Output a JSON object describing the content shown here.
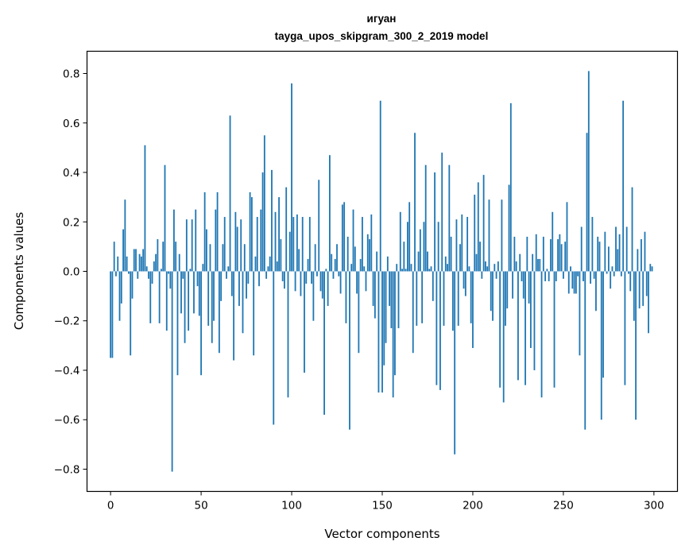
{
  "chart_data": {
    "type": "bar",
    "title": "игуан",
    "subtitle": "tayga_upos_skipgram_300_2_2019 model",
    "xlabel": "Vector components",
    "ylabel": "Components values",
    "xlim": [
      -13,
      313
    ],
    "ylim": [
      -0.89,
      0.89
    ],
    "xticks": [
      0,
      50,
      100,
      150,
      200,
      250,
      300
    ],
    "xtick_labels": [
      "0",
      "50",
      "100",
      "150",
      "200",
      "250",
      "300"
    ],
    "yticks": [
      0.8,
      0.6,
      0.4,
      0.2,
      0.0,
      -0.2,
      -0.4,
      -0.6,
      -0.8
    ],
    "ytick_labels": [
      "0.8",
      "0.6",
      "0.4",
      "0.2",
      "0.0",
      "−0.2",
      "−0.4",
      "−0.6",
      "−0.8"
    ],
    "bar_color": "#1f77b4",
    "grid": false,
    "values": [
      -0.35,
      -0.35,
      0.12,
      -0.02,
      0.06,
      -0.2,
      -0.13,
      0.17,
      0.29,
      0.06,
      -0.01,
      -0.34,
      -0.11,
      0.09,
      0.09,
      -0.03,
      0.07,
      0.06,
      0.09,
      0.51,
      0.02,
      -0.03,
      -0.21,
      -0.05,
      0.04,
      0.07,
      0.13,
      -0.21,
      0.01,
      0.12,
      0.43,
      -0.24,
      -0.01,
      -0.07,
      -0.81,
      0.25,
      0.12,
      -0.42,
      0.07,
      -0.17,
      -0.03,
      -0.29,
      0.21,
      -0.24,
      0.01,
      0.21,
      -0.17,
      0.25,
      -0.06,
      -0.18,
      -0.42,
      0.03,
      0.32,
      0.17,
      -0.22,
      0.11,
      -0.29,
      -0.2,
      0.25,
      0.32,
      -0.33,
      -0.12,
      0.11,
      0.22,
      -0.03,
      0.02,
      0.63,
      -0.1,
      -0.36,
      0.24,
      0.18,
      -0.14,
      0.21,
      -0.25,
      0.11,
      -0.11,
      -0.05,
      0.32,
      0.3,
      -0.34,
      0.06,
      0.22,
      -0.06,
      0.25,
      0.4,
      0.55,
      -0.03,
      0.02,
      0.06,
      0.41,
      -0.62,
      0.24,
      0.04,
      0.3,
      0.13,
      -0.04,
      -0.07,
      0.34,
      -0.51,
      0.16,
      0.76,
      0.22,
      -0.08,
      0.23,
      0.09,
      -0.1,
      0.22,
      -0.41,
      -0.05,
      0.05,
      0.22,
      -0.05,
      -0.2,
      0.11,
      -0.02,
      0.37,
      -0.08,
      -0.11,
      -0.58,
      0.01,
      -0.14,
      0.47,
      0.07,
      -0.03,
      0.05,
      0.11,
      -0.02,
      -0.09,
      0.27,
      0.28,
      -0.21,
      0.14,
      -0.64,
      0.03,
      0.25,
      0.1,
      -0.09,
      -0.33,
      0.05,
      0.22,
      0.02,
      -0.08,
      0.15,
      0.13,
      0.23,
      -0.14,
      -0.19,
      0.08,
      -0.49,
      0.69,
      -0.49,
      -0.38,
      -0.29,
      0.06,
      -0.14,
      -0.23,
      -0.51,
      -0.42,
      0.03,
      -0.23,
      0.24,
      0.01,
      0.12,
      0.01,
      0.2,
      0.28,
      0.03,
      -0.33,
      0.56,
      -0.22,
      0.08,
      0.17,
      -0.21,
      0.2,
      0.43,
      0.08,
      0.01,
      0.02,
      -0.12,
      0.4,
      -0.46,
      0.2,
      -0.48,
      0.48,
      -0.22,
      0.06,
      0.03,
      0.43,
      0.14,
      -0.24,
      -0.74,
      0.21,
      -0.22,
      0.11,
      0.23,
      -0.07,
      -0.1,
      0.22,
      0.02,
      -0.21,
      -0.31,
      0.31,
      0.07,
      0.36,
      0.12,
      -0.03,
      0.39,
      0.04,
      0.02,
      0.29,
      -0.16,
      -0.2,
      0.03,
      -0.03,
      0.04,
      -0.47,
      0.29,
      -0.53,
      -0.22,
      -0.15,
      0.35,
      0.68,
      -0.11,
      0.14,
      0.04,
      -0.44,
      0.07,
      -0.04,
      -0.11,
      -0.46,
      0.14,
      -0.13,
      -0.31,
      0.07,
      -0.4,
      0.15,
      0.05,
      0.05,
      -0.51,
      0.14,
      -0.04,
      0.01,
      -0.04,
      0.13,
      0.24,
      -0.47,
      -0.04,
      0.13,
      0.15,
      0.11,
      -0.03,
      0.12,
      0.28,
      -0.09,
      0.02,
      -0.07,
      -0.09,
      -0.09,
      -0.02,
      -0.34,
      0.18,
      -0.04,
      -0.64,
      0.56,
      0.81,
      -0.05,
      0.22,
      -0.03,
      -0.16,
      0.14,
      0.12,
      -0.6,
      -0.43,
      0.16,
      -0.01,
      0.1,
      -0.07,
      0.02,
      -0.02,
      0.18,
      0.09,
      0.15,
      -0.02,
      0.69,
      -0.46,
      0.18,
      -0.01,
      -0.08,
      0.34,
      -0.2,
      -0.6,
      0.09,
      -0.15,
      0.13,
      -0.14,
      0.16,
      -0.1,
      -0.25,
      0.03,
      0.02
    ]
  }
}
